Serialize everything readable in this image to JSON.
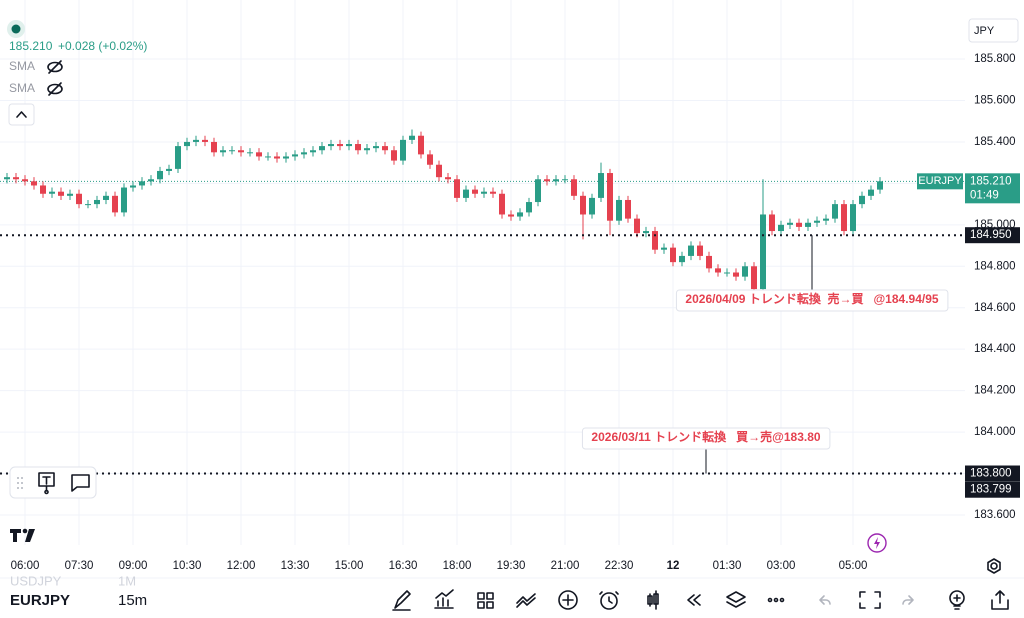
{
  "header": {
    "price": "185.210",
    "change": "+0.028 (+0.02%)",
    "indicators": [
      "SMA",
      "SMA"
    ],
    "currency": "JPY"
  },
  "chart_data": {
    "type": "candlestick",
    "symbol": "EURJPY",
    "countdown": "01:49",
    "up_color": "#2a9d87",
    "down_color": "#e5414f",
    "grid": true,
    "categories": [
      null,
      null,
      "06:00",
      null,
      null,
      null,
      null,
      null,
      "07:30",
      null,
      null,
      null,
      null,
      null,
      "09:00",
      null,
      null,
      null,
      null,
      null,
      "10:30",
      null,
      null,
      null,
      null,
      null,
      "12:00",
      null,
      null,
      null,
      null,
      null,
      "13:30",
      null,
      null,
      null,
      null,
      null,
      "15:00",
      null,
      null,
      null,
      null,
      null,
      "16:30",
      null,
      null,
      null,
      null,
      null,
      "18:00",
      null,
      null,
      null,
      null,
      null,
      "19:30",
      null,
      null,
      null,
      null,
      null,
      "21:00",
      null,
      null,
      null,
      null,
      null,
      "22:30",
      null,
      null,
      null,
      null,
      null,
      "12",
      null,
      null,
      null,
      null,
      null,
      "01:30",
      null,
      null,
      null,
      null,
      null,
      "03:00",
      null,
      null,
      null,
      null,
      null,
      null,
      null,
      "05:00",
      null,
      null,
      null
    ],
    "open": [
      185.22,
      185.23,
      185.22,
      185.21,
      185.19,
      185.15,
      185.16,
      185.14,
      185.15,
      185.1,
      185.1,
      185.12,
      185.14,
      185.06,
      185.18,
      185.19,
      185.21,
      185.22,
      185.26,
      185.27,
      185.38,
      185.4,
      185.41,
      185.4,
      185.35,
      185.36,
      185.36,
      185.35,
      185.35,
      185.33,
      185.33,
      185.32,
      185.33,
      185.34,
      185.35,
      185.36,
      185.38,
      185.39,
      185.38,
      185.39,
      185.36,
      185.37,
      185.38,
      185.36,
      185.31,
      185.41,
      185.43,
      185.34,
      185.29,
      185.23,
      185.22,
      185.13,
      185.17,
      185.15,
      185.16,
      185.15,
      185.05,
      185.04,
      185.06,
      185.11,
      185.22,
      185.21,
      185.22,
      185.22,
      185.14,
      185.05,
      185.13,
      185.25,
      185.02,
      185.12,
      185.03,
      184.96,
      184.97,
      184.88,
      184.89,
      184.82,
      184.85,
      184.9,
      184.85,
      184.79,
      184.77,
      184.77,
      184.75,
      184.8,
      184.69,
      185.05,
      184.97,
      185.0,
      185.01,
      184.99,
      185.01,
      185.02,
      185.03,
      185.1,
      184.97,
      185.1,
      185.14,
      185.17
    ],
    "high": [
      185.25,
      185.25,
      185.24,
      185.23,
      185.21,
      185.18,
      185.18,
      185.17,
      185.17,
      185.12,
      185.14,
      185.16,
      185.16,
      185.2,
      185.21,
      185.23,
      185.24,
      185.28,
      185.29,
      185.4,
      185.42,
      185.43,
      185.43,
      185.42,
      185.38,
      185.38,
      185.38,
      185.37,
      185.37,
      185.35,
      185.35,
      185.35,
      185.36,
      185.37,
      185.38,
      185.4,
      185.41,
      185.41,
      185.41,
      185.41,
      185.39,
      185.4,
      185.4,
      185.38,
      185.43,
      185.46,
      185.45,
      185.36,
      185.31,
      185.25,
      185.24,
      185.19,
      185.19,
      185.18,
      185.18,
      185.17,
      185.07,
      185.08,
      185.13,
      185.24,
      185.24,
      185.24,
      185.24,
      185.24,
      185.16,
      185.15,
      185.3,
      185.27,
      185.14,
      185.14,
      185.05,
      184.99,
      184.99,
      184.91,
      184.91,
      184.87,
      184.92,
      184.92,
      184.87,
      184.81,
      184.79,
      184.79,
      184.82,
      184.82,
      185.22,
      185.07,
      185.02,
      185.03,
      185.03,
      185.03,
      185.04,
      185.05,
      185.12,
      185.12,
      185.12,
      185.16,
      185.19,
      185.23
    ],
    "low": [
      185.2,
      185.2,
      185.19,
      185.17,
      185.13,
      185.13,
      185.12,
      185.12,
      185.08,
      185.08,
      185.08,
      185.1,
      185.04,
      185.04,
      185.16,
      185.17,
      185.19,
      185.2,
      185.24,
      185.25,
      185.36,
      185.38,
      185.38,
      185.33,
      185.33,
      185.34,
      185.33,
      185.33,
      185.31,
      185.31,
      185.3,
      185.3,
      185.31,
      185.32,
      185.33,
      185.34,
      185.36,
      185.36,
      185.36,
      185.34,
      185.34,
      185.35,
      185.34,
      185.29,
      185.29,
      185.39,
      185.32,
      185.27,
      185.21,
      185.2,
      185.11,
      185.11,
      185.13,
      185.13,
      185.13,
      185.03,
      185.02,
      185.02,
      185.04,
      185.09,
      185.19,
      185.19,
      185.2,
      185.12,
      184.93,
      185.03,
      185.11,
      184.95,
      185.0,
      185.01,
      184.94,
      184.94,
      184.86,
      184.86,
      184.8,
      184.8,
      184.83,
      184.83,
      184.77,
      184.75,
      184.75,
      184.73,
      184.73,
      184.66,
      184.67,
      184.95,
      184.95,
      184.98,
      184.97,
      184.97,
      184.99,
      185.0,
      185.01,
      184.95,
      184.95,
      185.08,
      185.12,
      185.15
    ],
    "close": [
      185.23,
      185.22,
      185.21,
      185.19,
      185.15,
      185.16,
      185.14,
      185.15,
      185.1,
      185.1,
      185.12,
      185.14,
      185.06,
      185.18,
      185.19,
      185.21,
      185.22,
      185.26,
      185.27,
      185.38,
      185.4,
      185.41,
      185.4,
      185.35,
      185.36,
      185.36,
      185.35,
      185.35,
      185.33,
      185.33,
      185.32,
      185.33,
      185.34,
      185.35,
      185.36,
      185.38,
      185.39,
      185.38,
      185.39,
      185.36,
      185.37,
      185.38,
      185.36,
      185.31,
      185.41,
      185.43,
      185.34,
      185.29,
      185.23,
      185.22,
      185.13,
      185.17,
      185.15,
      185.16,
      185.15,
      185.05,
      185.04,
      185.06,
      185.11,
      185.22,
      185.21,
      185.22,
      185.22,
      185.14,
      185.05,
      185.13,
      185.25,
      185.02,
      185.12,
      185.03,
      184.96,
      184.97,
      184.88,
      184.89,
      184.82,
      184.85,
      184.9,
      184.85,
      184.79,
      184.77,
      184.77,
      184.75,
      184.8,
      184.69,
      185.05,
      184.97,
      185.0,
      185.01,
      184.99,
      185.01,
      185.02,
      185.03,
      185.1,
      184.97,
      185.1,
      185.14,
      185.17,
      185.21
    ],
    "ylim": [
      183.455,
      186.085
    ],
    "yticks": [
      {
        "value": 183.6,
        "label": "183.600"
      },
      {
        "value": 183.8,
        "label": "183.800"
      },
      {
        "value": 184.0,
        "label": "184.000"
      },
      {
        "value": 184.2,
        "label": "184.200"
      },
      {
        "value": 184.4,
        "label": "184.400"
      },
      {
        "value": 184.6,
        "label": "184.600"
      },
      {
        "value": 184.8,
        "label": "184.800"
      },
      {
        "value": 185.0,
        "label": "185.000"
      },
      {
        "value": 185.2,
        "label": "185.200"
      },
      {
        "value": 185.4,
        "label": "185.400"
      },
      {
        "value": 185.6,
        "label": "185.600"
      },
      {
        "value": 185.8,
        "label": "185.800"
      }
    ],
    "last_price": {
      "value": 185.21,
      "label": "185.210"
    },
    "hlines": [
      {
        "value": 184.95,
        "label": "184.950"
      },
      {
        "value": 183.8,
        "label": "183.800"
      }
    ],
    "bid": {
      "value": 183.799,
      "label": "183.799"
    },
    "annotations": [
      "2026/04/09 トレンド転換  売→買   @184.94/95",
      "2026/03/11 トレンド転換   買→売@183.80"
    ]
  },
  "footer": {
    "symbols": [
      {
        "symbol": "USDJPY",
        "interval": "1M"
      },
      {
        "symbol": "EURJPY",
        "interval": "15m"
      }
    ]
  }
}
